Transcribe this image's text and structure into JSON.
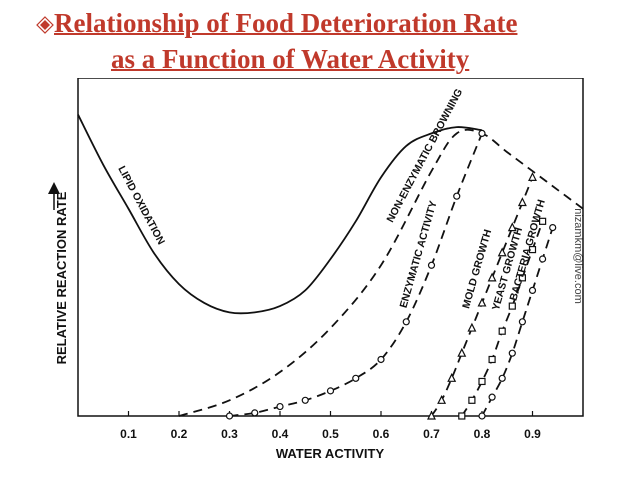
{
  "slide": {
    "title_bullet_icon": "diamond-bullet-icon",
    "title_color": "#c0392b",
    "title_line1": "Relationship of Food Deterioration Rate",
    "title_line2": "as a Function of  Water Activity",
    "watermark": "nizamkm@live.com"
  },
  "chart_data": {
    "type": "line",
    "xlabel": "WATER ACTIVITY",
    "ylabel": "RELATIVE REACTION RATE",
    "x_ticks": [
      "0.1",
      "0.2",
      "0.3",
      "0.4",
      "0.5",
      "0.6",
      "0.7",
      "0.8",
      "0.9"
    ],
    "xlim": [
      0,
      1.0
    ],
    "ylim": [
      0,
      1.0
    ],
    "series": [
      {
        "name": "LIPID OXIDATION",
        "style": "solid",
        "x": [
          0.0,
          0.05,
          0.1,
          0.15,
          0.2,
          0.25,
          0.3,
          0.35,
          0.4,
          0.45,
          0.5,
          0.55,
          0.6,
          0.65,
          0.7,
          0.75,
          0.8
        ],
        "y": [
          0.96,
          0.8,
          0.66,
          0.52,
          0.42,
          0.36,
          0.33,
          0.33,
          0.35,
          0.4,
          0.5,
          0.62,
          0.76,
          0.86,
          0.9,
          0.92,
          0.91
        ]
      },
      {
        "name": "NON-ENZYMATIC BROWNING",
        "style": "dashed",
        "x": [
          0.2,
          0.3,
          0.4,
          0.5,
          0.6,
          0.7,
          0.75,
          0.8,
          0.85,
          0.9,
          0.95,
          1.0
        ],
        "y": [
          0.0,
          0.05,
          0.14,
          0.28,
          0.48,
          0.78,
          0.9,
          0.9,
          0.84,
          0.78,
          0.72,
          0.66
        ]
      },
      {
        "name": "ENZYMATIC ACTIVITY",
        "style": "dashed-circles",
        "x": [
          0.3,
          0.35,
          0.4,
          0.45,
          0.5,
          0.55,
          0.6,
          0.65,
          0.7,
          0.75,
          0.8
        ],
        "y": [
          0.0,
          0.01,
          0.03,
          0.05,
          0.08,
          0.12,
          0.18,
          0.3,
          0.48,
          0.7,
          0.9
        ]
      },
      {
        "name": "MOLD GROWTH",
        "style": "dashed-triangles",
        "x": [
          0.7,
          0.72,
          0.74,
          0.76,
          0.78,
          0.8,
          0.82,
          0.84,
          0.86,
          0.88,
          0.9
        ],
        "y": [
          0.0,
          0.05,
          0.12,
          0.2,
          0.28,
          0.36,
          0.44,
          0.52,
          0.6,
          0.68,
          0.76
        ]
      },
      {
        "name": "YEAST GROWTH",
        "style": "dashed-squares",
        "x": [
          0.76,
          0.78,
          0.8,
          0.82,
          0.84,
          0.86,
          0.88,
          0.9,
          0.92
        ],
        "y": [
          0.0,
          0.05,
          0.11,
          0.18,
          0.27,
          0.35,
          0.44,
          0.53,
          0.62
        ]
      },
      {
        "name": "BACTERIA GROWTH",
        "style": "dashed-circles",
        "x": [
          0.8,
          0.82,
          0.84,
          0.86,
          0.88,
          0.9,
          0.92,
          0.94
        ],
        "y": [
          0.0,
          0.06,
          0.12,
          0.2,
          0.3,
          0.4,
          0.5,
          0.6
        ]
      }
    ]
  }
}
